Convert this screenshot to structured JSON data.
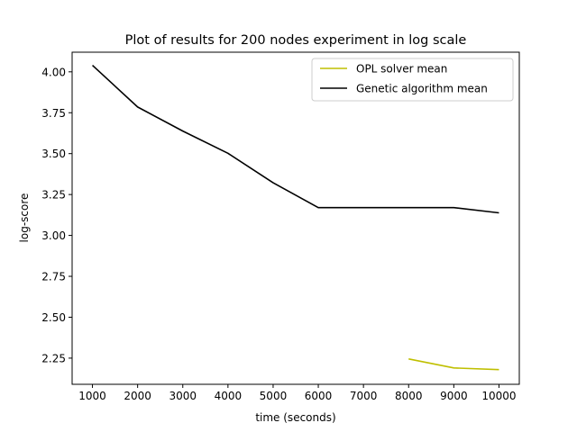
{
  "chart_data": {
    "type": "line",
    "title": "Plot of results for 200 nodes experiment in log scale",
    "xlabel": "time (seconds)",
    "ylabel": "log-score",
    "xlim": [
      550,
      10450
    ],
    "ylim": [
      2.09,
      4.12
    ],
    "x_ticks": [
      1000,
      2000,
      3000,
      4000,
      5000,
      6000,
      7000,
      8000,
      9000,
      10000
    ],
    "y_ticks": [
      2.25,
      2.5,
      2.75,
      3.0,
      3.25,
      3.5,
      3.75,
      4.0
    ],
    "grid": false,
    "legend_position": "upper right",
    "series": [
      {
        "name": "OPL solver mean",
        "color": "#bfbf00",
        "x": [
          8000,
          9000,
          10000
        ],
        "y": [
          2.245,
          2.19,
          2.18
        ]
      },
      {
        "name": "Genetic algorithm mean",
        "color": "#000000",
        "x": [
          1000,
          2000,
          3000,
          4000,
          5000,
          6000,
          7000,
          8000,
          9000,
          10000
        ],
        "y": [
          4.04,
          3.785,
          3.638,
          3.502,
          3.322,
          3.17,
          3.17,
          3.17,
          3.17,
          3.138
        ]
      }
    ]
  }
}
